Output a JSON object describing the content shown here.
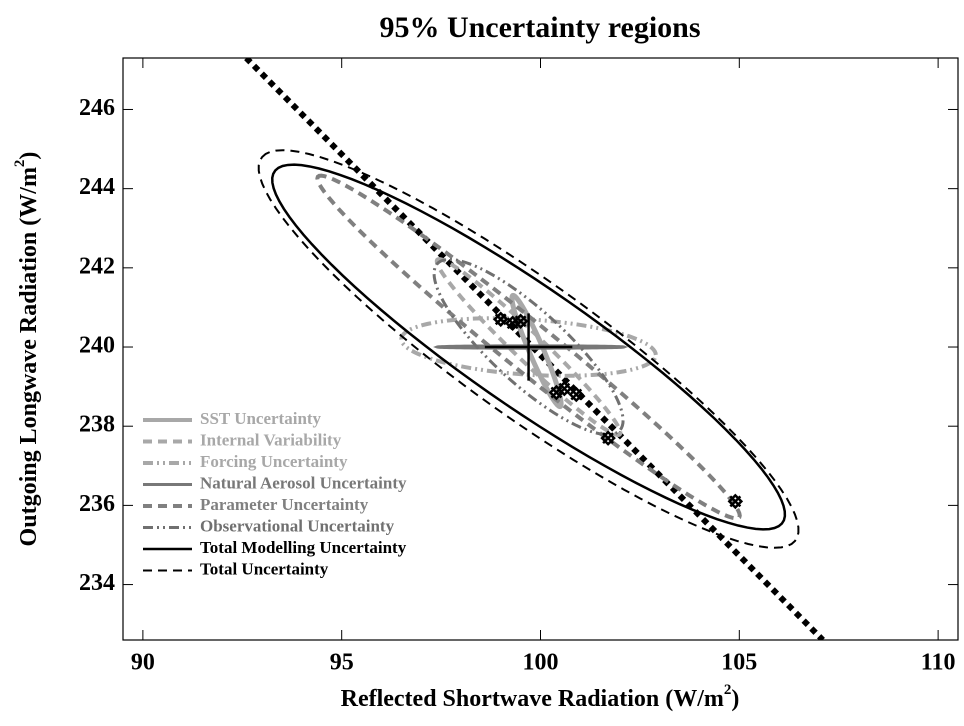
{
  "chart_data": {
    "type": "ellipse",
    "title": "95% Uncertainty regions",
    "xlabel": [
      "Reflected Shortwave Radiation (W/m",
      "2",
      ")"
    ],
    "ylabel": [
      "Outgoing Longwave Radiation (W/m",
      "2",
      ")"
    ],
    "xlim": [
      89.5,
      110.5
    ],
    "ylim": [
      232.6,
      247.3
    ],
    "xticks": [
      90,
      95,
      100,
      105,
      110
    ],
    "yticks": [
      234,
      236,
      238,
      240,
      242,
      244,
      246
    ],
    "series": [
      {
        "name": "SST Uncertainty",
        "color": "#a8a8a8",
        "dash": "solid",
        "width": 5,
        "center": [
          99.9,
          239.9
        ],
        "axis1": [
          -0.6,
          1.4
        ],
        "axis2": [
          0.15,
          0.1
        ]
      },
      {
        "name": "Internal Variability",
        "color": "#a8a8a8",
        "dash": "dashed",
        "width": 4,
        "center": [
          99.7,
          240
        ],
        "axis1": [
          -2.3,
          2.2
        ],
        "axis2": [
          0.2,
          0.3
        ]
      },
      {
        "name": "Forcing Uncertainty",
        "color": "#a8a8a8",
        "dash": "dashdotdot",
        "width": 4,
        "center": [
          99.7,
          240
        ],
        "axis1": [
          3.2,
          -0.2
        ],
        "axis2": [
          0,
          0.7
        ]
      },
      {
        "name": "Natural Aerosol Uncertainty",
        "color": "#787878",
        "dash": "solid",
        "width": 3,
        "center": [
          99.75,
          240
        ],
        "axis1": [
          2.35,
          0
        ],
        "axis2": [
          0,
          0.03
        ]
      },
      {
        "name": "Parameter Uncertainty",
        "color": "#808080",
        "dash": "dashed",
        "width": 4,
        "center": [
          99.7,
          240
        ],
        "axis1": [
          -5.3,
          4.3
        ],
        "axis2": [
          0.35,
          0.5
        ]
      },
      {
        "name": "Observational Uncertainty",
        "color": "#707070",
        "dash": "dashdotdot",
        "width": 3,
        "center": [
          99.7,
          240
        ],
        "axis1": [
          -2.3,
          2.1
        ],
        "axis2": [
          0.6,
          0.7
        ]
      },
      {
        "name": "Total Modelling Uncertainty",
        "color": "#000000",
        "dash": "solid",
        "width": 2.5,
        "center": [
          99.7,
          240
        ],
        "axis1": [
          -6.37,
          4.46
        ],
        "axis2": [
          1.0,
          1.15
        ]
      },
      {
        "name": "Total Uncertainty",
        "color": "#000000",
        "dash": "dashed",
        "width": 2,
        "center": [
          99.7,
          239.95
        ],
        "axis1": [
          -6.7,
          4.85
        ],
        "axis2": [
          1.1,
          1.3
        ]
      }
    ],
    "best_estimate": {
      "x": 99.7,
      "y": 240,
      "xerr": 1.1,
      "yerr": 0.85,
      "color": "#000000"
    },
    "points": {
      "x": [
        99.0,
        99.3,
        99.5,
        100.4,
        100.6,
        100.9,
        101.7,
        104.9
      ],
      "y": [
        240.7,
        240.6,
        240.65,
        238.85,
        238.95,
        238.8,
        237.7,
        236.1
      ],
      "color": "#000000"
    },
    "fit_line": {
      "x": [
        92.6,
        107.1
      ],
      "y": [
        247.3,
        232.6
      ],
      "color": "#000000"
    }
  }
}
